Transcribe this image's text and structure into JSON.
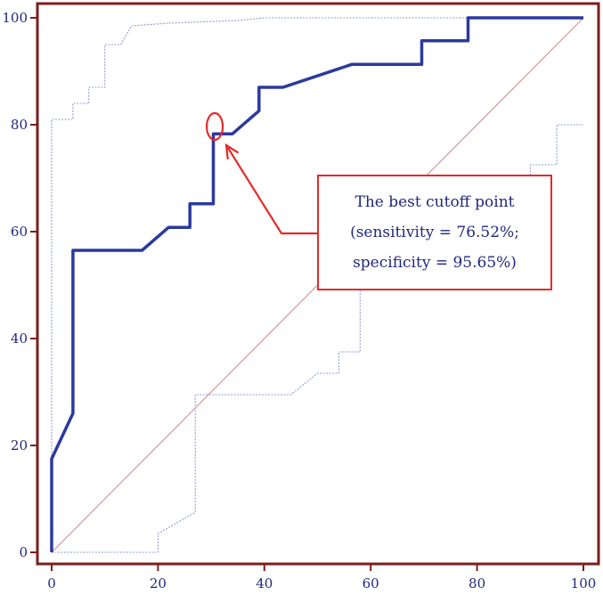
{
  "chart_data": {
    "type": "line",
    "title": "",
    "xlabel": "",
    "ylabel": "",
    "xlim": [
      0,
      100
    ],
    "ylim": [
      0,
      100
    ],
    "x_ticks": [
      "0",
      "20",
      "40",
      "60",
      "80",
      "100"
    ],
    "y_ticks": [
      "0",
      "20",
      "40",
      "60",
      "80",
      "100"
    ],
    "grid": false,
    "legend": "none",
    "series": [
      {
        "role": "roc-curve",
        "style": "solid-thick",
        "color": "#2b3a9e",
        "points": [
          [
            0,
            0
          ],
          [
            0,
            17.5
          ],
          [
            4,
            26
          ],
          [
            4,
            56.5
          ],
          [
            17,
            56.5
          ],
          [
            22,
            60.8
          ],
          [
            26,
            60.8
          ],
          [
            26,
            65.2
          ],
          [
            30.4,
            65.2
          ],
          [
            30.4,
            78.3
          ],
          [
            34,
            78.3
          ],
          [
            39,
            82.6
          ],
          [
            39,
            87
          ],
          [
            43.5,
            87
          ],
          [
            56.5,
            91.3
          ],
          [
            69.6,
            91.3
          ],
          [
            69.6,
            95.7
          ],
          [
            78.3,
            95.7
          ],
          [
            78.3,
            100
          ],
          [
            100,
            100
          ]
        ]
      },
      {
        "role": "upper-confidence-bound",
        "style": "dotted-thin",
        "color": "#8e9bd8",
        "points": [
          [
            0,
            0
          ],
          [
            0,
            81
          ],
          [
            4,
            81
          ],
          [
            4,
            84
          ],
          [
            7,
            84
          ],
          [
            7,
            87
          ],
          [
            10,
            87
          ],
          [
            10,
            95
          ],
          [
            13,
            95
          ],
          [
            15,
            98.5
          ],
          [
            22,
            99
          ],
          [
            35,
            99.5
          ],
          [
            40,
            100
          ],
          [
            100,
            100
          ]
        ]
      },
      {
        "role": "lower-confidence-bound",
        "style": "dotted-thin",
        "color": "#8e9bd8",
        "points": [
          [
            0,
            0
          ],
          [
            20,
            0
          ],
          [
            20,
            3.5
          ],
          [
            27,
            7.5
          ],
          [
            27,
            29.5
          ],
          [
            45,
            29.5
          ],
          [
            50,
            33.5
          ],
          [
            54,
            33.5
          ],
          [
            54,
            37.5
          ],
          [
            58,
            37.5
          ],
          [
            58,
            56.5
          ],
          [
            90,
            56.5
          ],
          [
            90,
            72.5
          ],
          [
            95,
            72.5
          ],
          [
            95,
            80
          ],
          [
            100,
            80
          ]
        ]
      },
      {
        "role": "reference-diagonal",
        "style": "solid-thin",
        "color": "#d48c8c",
        "points": [
          [
            0,
            0
          ],
          [
            100,
            100
          ]
        ]
      }
    ],
    "annotation": {
      "lines": [
        "The best cutoff point",
        "(sensitivity = 76.52%;",
        "specificity = 95.65%)"
      ],
      "target": [
        31,
        78
      ],
      "color": "#e32b2b"
    }
  }
}
